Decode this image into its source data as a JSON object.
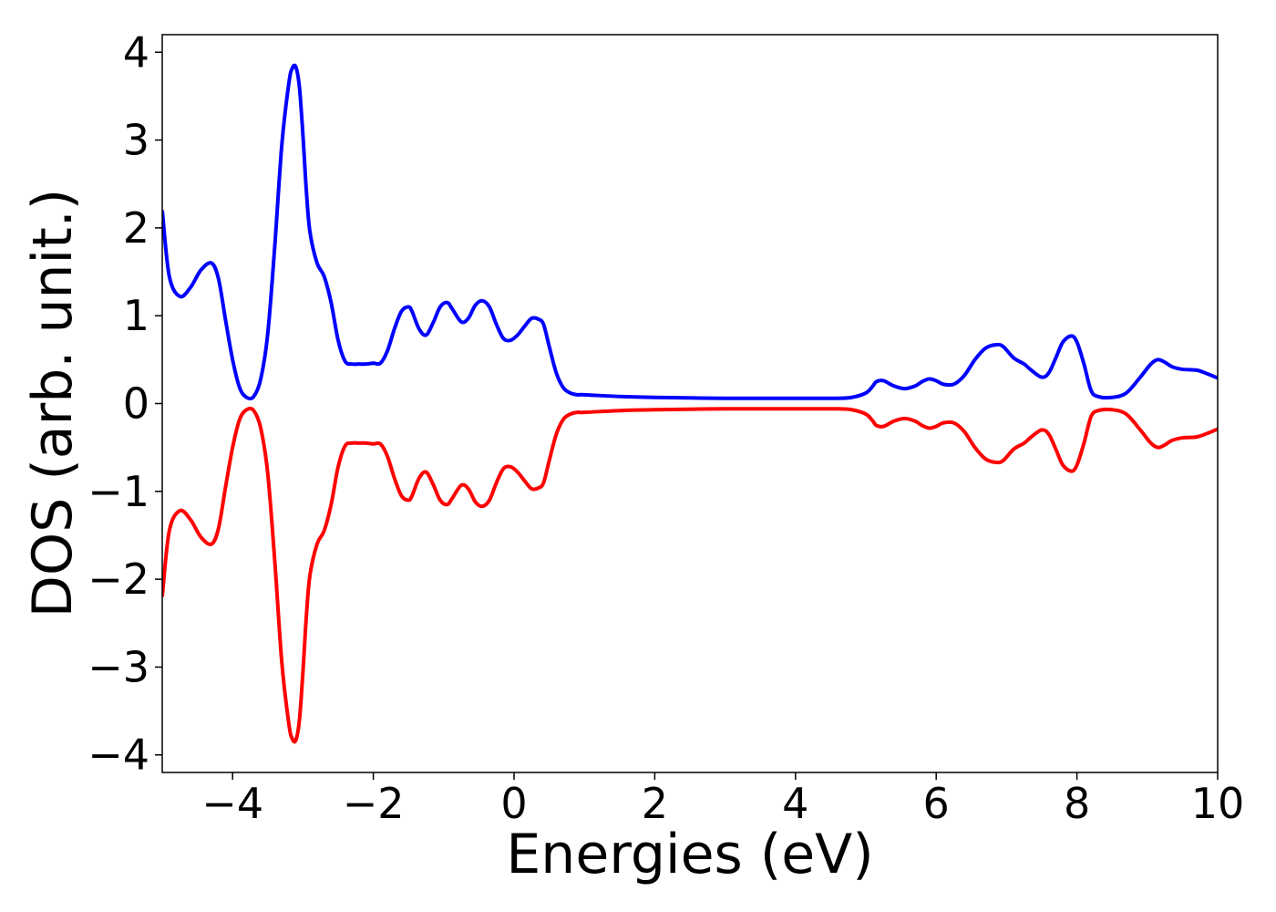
{
  "chart_data": {
    "type": "line",
    "title": "",
    "xlabel": "Energies (eV)",
    "ylabel": "DOS (arb. unit.)",
    "xlim": [
      -5,
      10
    ],
    "ylim": [
      -4.2,
      4.2
    ],
    "xticks": [
      -4,
      -2,
      0,
      2,
      4,
      6,
      8,
      10
    ],
    "xtick_labels": [
      "−4",
      "−2",
      "0",
      "2",
      "4",
      "6",
      "8",
      "10"
    ],
    "yticks": [
      4,
      3,
      2,
      1,
      0,
      -1,
      -2,
      -3,
      -4
    ],
    "ytick_labels": [
      "4",
      "3",
      "2",
      "1",
      "0",
      "−1",
      "−2",
      "−3",
      "−4"
    ],
    "grid": false,
    "legend": "none",
    "series": [
      {
        "color": "#0000ff",
        "x": [
          -5.0,
          -4.9,
          -4.75,
          -4.6,
          -4.45,
          -4.3,
          -4.2,
          -4.1,
          -4.0,
          -3.9,
          -3.8,
          -3.7,
          -3.6,
          -3.5,
          -3.4,
          -3.3,
          -3.2,
          -3.15,
          -3.1,
          -3.05,
          -3.0,
          -2.95,
          -2.9,
          -2.8,
          -2.7,
          -2.6,
          -2.5,
          -2.4,
          -2.3,
          -2.2,
          -2.1,
          -2.0,
          -1.9,
          -1.8,
          -1.7,
          -1.6,
          -1.5,
          -1.45,
          -1.35,
          -1.25,
          -1.15,
          -1.05,
          -0.95,
          -0.88,
          -0.75,
          -0.65,
          -0.55,
          -0.45,
          -0.35,
          -0.25,
          -0.15,
          -0.05,
          0.05,
          0.15,
          0.25,
          0.35,
          0.42,
          0.5,
          0.6,
          0.7,
          0.8,
          0.9,
          1.0,
          1.5,
          2.0,
          3.0,
          4.0,
          4.6,
          4.8,
          5.0,
          5.1,
          5.15,
          5.25,
          5.4,
          5.55,
          5.7,
          5.8,
          5.9,
          6.0,
          6.1,
          6.25,
          6.4,
          6.55,
          6.7,
          6.85,
          6.95,
          7.1,
          7.25,
          7.35,
          7.5,
          7.6,
          7.7,
          7.8,
          7.92,
          8.0,
          8.1,
          8.2,
          8.3,
          8.5,
          8.7,
          8.9,
          9.05,
          9.15,
          9.25,
          9.35,
          9.5,
          9.7,
          9.85,
          10.0
        ],
        "y": [
          2.2,
          1.45,
          1.22,
          1.32,
          1.52,
          1.6,
          1.42,
          0.95,
          0.5,
          0.18,
          0.07,
          0.08,
          0.28,
          0.8,
          1.8,
          2.95,
          3.65,
          3.82,
          3.83,
          3.6,
          3.05,
          2.4,
          1.95,
          1.6,
          1.45,
          1.15,
          0.72,
          0.48,
          0.45,
          0.45,
          0.45,
          0.46,
          0.46,
          0.6,
          0.85,
          1.05,
          1.1,
          1.05,
          0.85,
          0.78,
          0.92,
          1.1,
          1.15,
          1.08,
          0.93,
          0.97,
          1.12,
          1.17,
          1.1,
          0.9,
          0.74,
          0.72,
          0.78,
          0.88,
          0.97,
          0.96,
          0.9,
          0.65,
          0.35,
          0.18,
          0.12,
          0.1,
          0.1,
          0.08,
          0.07,
          0.06,
          0.06,
          0.06,
          0.07,
          0.12,
          0.2,
          0.25,
          0.26,
          0.2,
          0.17,
          0.2,
          0.25,
          0.28,
          0.26,
          0.22,
          0.22,
          0.32,
          0.5,
          0.63,
          0.67,
          0.65,
          0.52,
          0.45,
          0.38,
          0.3,
          0.35,
          0.52,
          0.7,
          0.77,
          0.7,
          0.45,
          0.15,
          0.08,
          0.07,
          0.12,
          0.3,
          0.45,
          0.5,
          0.47,
          0.42,
          0.39,
          0.38,
          0.34,
          0.29
        ]
      },
      {
        "color": "#ff0000",
        "x": [
          -5.0,
          -4.9,
          -4.75,
          -4.6,
          -4.45,
          -4.3,
          -4.2,
          -4.1,
          -4.0,
          -3.9,
          -3.8,
          -3.7,
          -3.6,
          -3.5,
          -3.4,
          -3.3,
          -3.2,
          -3.15,
          -3.1,
          -3.05,
          -3.0,
          -2.95,
          -2.9,
          -2.8,
          -2.7,
          -2.6,
          -2.5,
          -2.4,
          -2.3,
          -2.2,
          -2.1,
          -2.0,
          -1.9,
          -1.8,
          -1.7,
          -1.6,
          -1.5,
          -1.45,
          -1.35,
          -1.25,
          -1.15,
          -1.05,
          -0.95,
          -0.88,
          -0.75,
          -0.65,
          -0.55,
          -0.45,
          -0.35,
          -0.25,
          -0.15,
          -0.05,
          0.05,
          0.15,
          0.25,
          0.35,
          0.42,
          0.5,
          0.6,
          0.7,
          0.8,
          0.9,
          1.0,
          1.5,
          2.0,
          3.0,
          4.0,
          4.6,
          4.8,
          5.0,
          5.1,
          5.15,
          5.25,
          5.4,
          5.55,
          5.7,
          5.8,
          5.9,
          6.0,
          6.1,
          6.25,
          6.4,
          6.55,
          6.7,
          6.85,
          6.95,
          7.1,
          7.25,
          7.35,
          7.5,
          7.6,
          7.7,
          7.8,
          7.92,
          8.0,
          8.1,
          8.2,
          8.3,
          8.5,
          8.7,
          8.9,
          9.05,
          9.15,
          9.25,
          9.35,
          9.5,
          9.7,
          9.85,
          10.0
        ],
        "y": [
          -2.2,
          -1.45,
          -1.22,
          -1.32,
          -1.52,
          -1.6,
          -1.42,
          -0.95,
          -0.5,
          -0.18,
          -0.07,
          -0.08,
          -0.28,
          -0.8,
          -1.8,
          -2.95,
          -3.65,
          -3.82,
          -3.83,
          -3.6,
          -3.05,
          -2.4,
          -1.95,
          -1.6,
          -1.45,
          -1.15,
          -0.72,
          -0.48,
          -0.45,
          -0.45,
          -0.45,
          -0.46,
          -0.46,
          -0.6,
          -0.85,
          -1.05,
          -1.1,
          -1.05,
          -0.85,
          -0.78,
          -0.92,
          -1.1,
          -1.15,
          -1.08,
          -0.93,
          -0.97,
          -1.12,
          -1.17,
          -1.1,
          -0.9,
          -0.74,
          -0.72,
          -0.78,
          -0.88,
          -0.97,
          -0.96,
          -0.9,
          -0.65,
          -0.35,
          -0.18,
          -0.12,
          -0.1,
          -0.1,
          -0.08,
          -0.07,
          -0.06,
          -0.06,
          -0.06,
          -0.07,
          -0.12,
          -0.2,
          -0.25,
          -0.26,
          -0.2,
          -0.17,
          -0.2,
          -0.25,
          -0.28,
          -0.26,
          -0.22,
          -0.22,
          -0.32,
          -0.5,
          -0.63,
          -0.67,
          -0.65,
          -0.52,
          -0.45,
          -0.38,
          -0.3,
          -0.35,
          -0.52,
          -0.7,
          -0.77,
          -0.7,
          -0.45,
          -0.15,
          -0.08,
          -0.07,
          -0.12,
          -0.3,
          -0.45,
          -0.5,
          -0.47,
          -0.42,
          -0.39,
          -0.38,
          -0.34,
          -0.29
        ]
      }
    ]
  }
}
